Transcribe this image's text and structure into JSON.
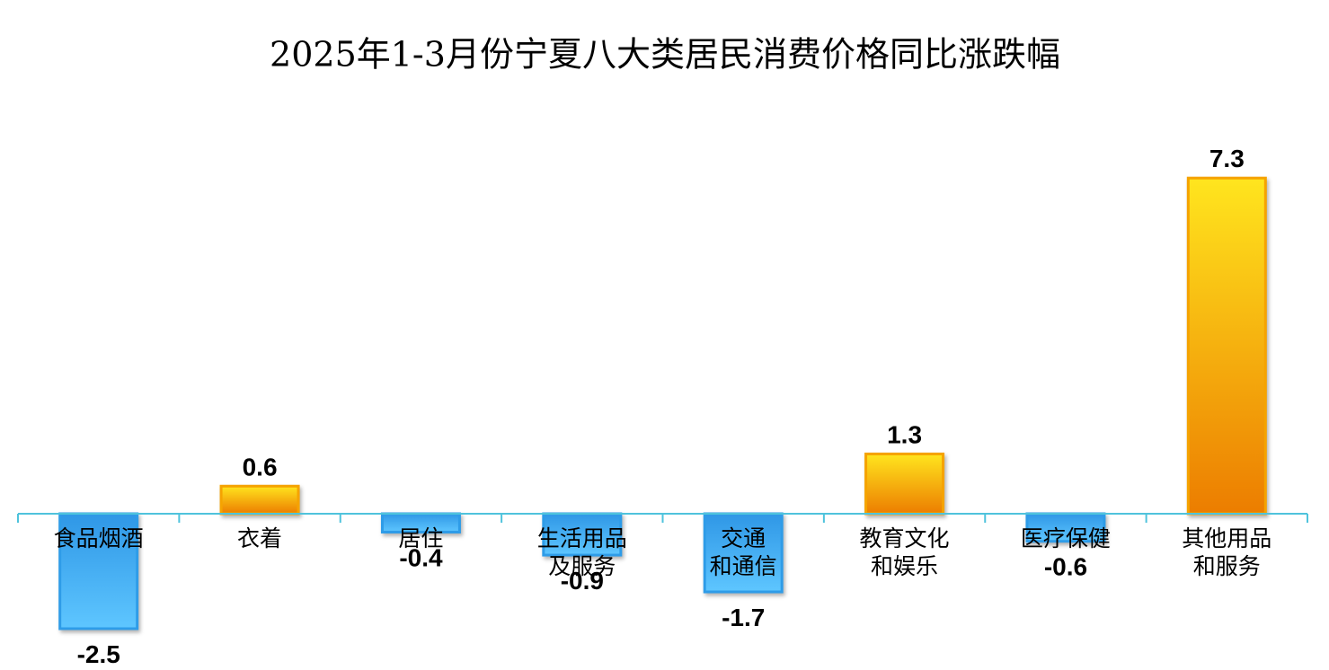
{
  "chart_data": {
    "type": "bar",
    "title": "2025年1-3月份宁夏八大类居民消费价格同比涨跌幅",
    "categories": [
      "食品烟酒",
      "衣着",
      "居住",
      "生活用品\n及服务",
      "交通\n和通信",
      "教育文化\n和娱乐",
      "医疗保健",
      "其他用品\n和服务"
    ],
    "values": [
      -2.5,
      0.6,
      -0.4,
      -0.9,
      -1.7,
      1.3,
      -0.6,
      7.3
    ],
    "positive_color": "#f5a300",
    "negative_color": "#2e9ce8"
  }
}
